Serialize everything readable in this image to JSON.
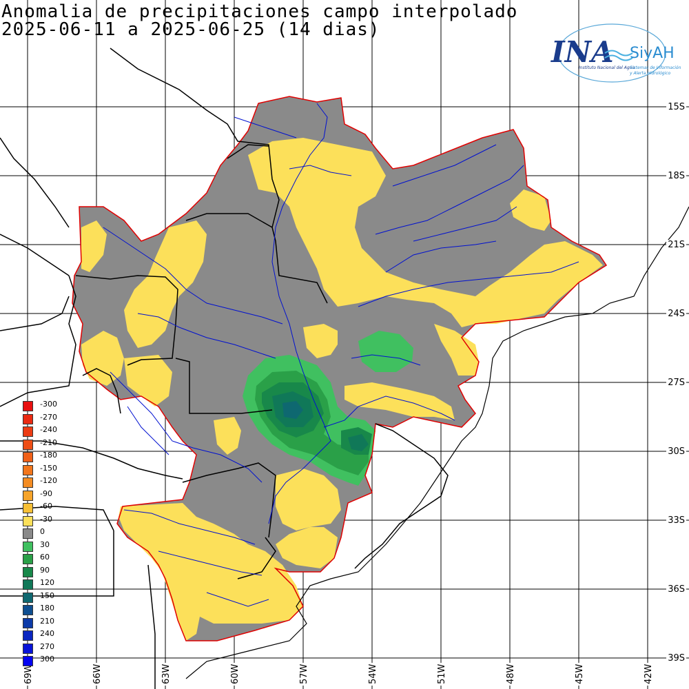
{
  "title": {
    "line1": "Anomalia de precipitaciones campo interpolado",
    "line2": "2025-06-11 a 2025-06-25 (14 dias)"
  },
  "logo": {
    "name": "INA",
    "product": "SiyAH",
    "subtitle1": "Instituto Nacional del Agua",
    "subtitle2": "Sistemas de Información",
    "subtitle3": "y Alerta Hidrológico"
  },
  "lat_labels": [
    "15S",
    "18S",
    "21S",
    "24S",
    "27S",
    "30S",
    "33S",
    "36S",
    "39S"
  ],
  "lon_labels": [
    "69W",
    "66W",
    "63W",
    "60W",
    "57W",
    "54W",
    "51W",
    "48W",
    "45W",
    "42W"
  ],
  "legend": [
    {
      "label": "-300",
      "color": "#e81010"
    },
    {
      "label": "-270",
      "color": "#ea2a12"
    },
    {
      "label": "-240",
      "color": "#ec3c14"
    },
    {
      "label": "-210",
      "color": "#ee4e16"
    },
    {
      "label": "-180",
      "color": "#f06018"
    },
    {
      "label": "-150",
      "color": "#f2761c"
    },
    {
      "label": "-120",
      "color": "#f48c22"
    },
    {
      "label": "-90",
      "color": "#f6a42a"
    },
    {
      "label": "-60",
      "color": "#f8c036"
    },
    {
      "label": "-30",
      "color": "#fce05a"
    },
    {
      "label": "0",
      "color": "#8a8a8a"
    },
    {
      "label": "30",
      "color": "#40c060"
    },
    {
      "label": "60",
      "color": "#2aa048"
    },
    {
      "label": "90",
      "color": "#18884a"
    },
    {
      "label": "120",
      "color": "#107858"
    },
    {
      "label": "150",
      "color": "#0e6870"
    },
    {
      "label": "180",
      "color": "#0e4e90"
    },
    {
      "label": "210",
      "color": "#0c3aa8"
    },
    {
      "label": "240",
      "color": "#0a26c0"
    },
    {
      "label": "270",
      "color": "#0814d8"
    },
    {
      "label": "300",
      "color": "#0404f0"
    }
  ]
}
